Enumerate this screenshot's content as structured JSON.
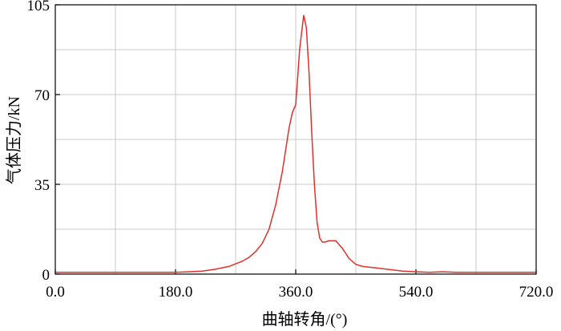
{
  "chart_data": {
    "type": "line",
    "xlabel": "曲轴转角/(°)",
    "ylabel": "气体压力/kN",
    "xlim": [
      0,
      720
    ],
    "ylim": [
      0,
      105
    ],
    "x_ticks": [
      0,
      180,
      360,
      540,
      720
    ],
    "x_tick_labels": [
      "0.0",
      "180.0",
      "360.0",
      "540.0",
      "720.0"
    ],
    "y_ticks": [
      0,
      35,
      70,
      105
    ],
    "y_tick_labels": [
      "0",
      "35",
      "70",
      "105"
    ],
    "grid": true,
    "x_minor_grid_step": 90,
    "y_minor_grid_step": 17.5,
    "colors": {
      "line": "#e0302c",
      "grid": "#c8c8c8",
      "frame": "#000000"
    },
    "series": [
      {
        "x": [
          0,
          90,
          180,
          200,
          220,
          240,
          260,
          280,
          290,
          300,
          310,
          320,
          330,
          340,
          350,
          355,
          360,
          366,
          372,
          376,
          380,
          384,
          388,
          392,
          396,
          400,
          404,
          410,
          420,
          430,
          440,
          450,
          460,
          480,
          500,
          520,
          540,
          560,
          580,
          600,
          640,
          680,
          720
        ],
        "y": [
          0.7,
          0.7,
          0.7,
          0.9,
          1.2,
          1.9,
          3.0,
          5.0,
          6.5,
          8.8,
          12.0,
          17.5,
          27.0,
          40.0,
          57.0,
          63.0,
          66.0,
          88.0,
          101.0,
          96.0,
          78.0,
          55.0,
          35.0,
          20.0,
          14.0,
          12.5,
          12.5,
          13.0,
          13.0,
          10.0,
          6.0,
          3.8,
          3.0,
          2.4,
          1.8,
          1.2,
          0.9,
          0.7,
          0.9,
          0.7,
          0.7,
          0.7,
          0.7
        ]
      }
    ]
  }
}
